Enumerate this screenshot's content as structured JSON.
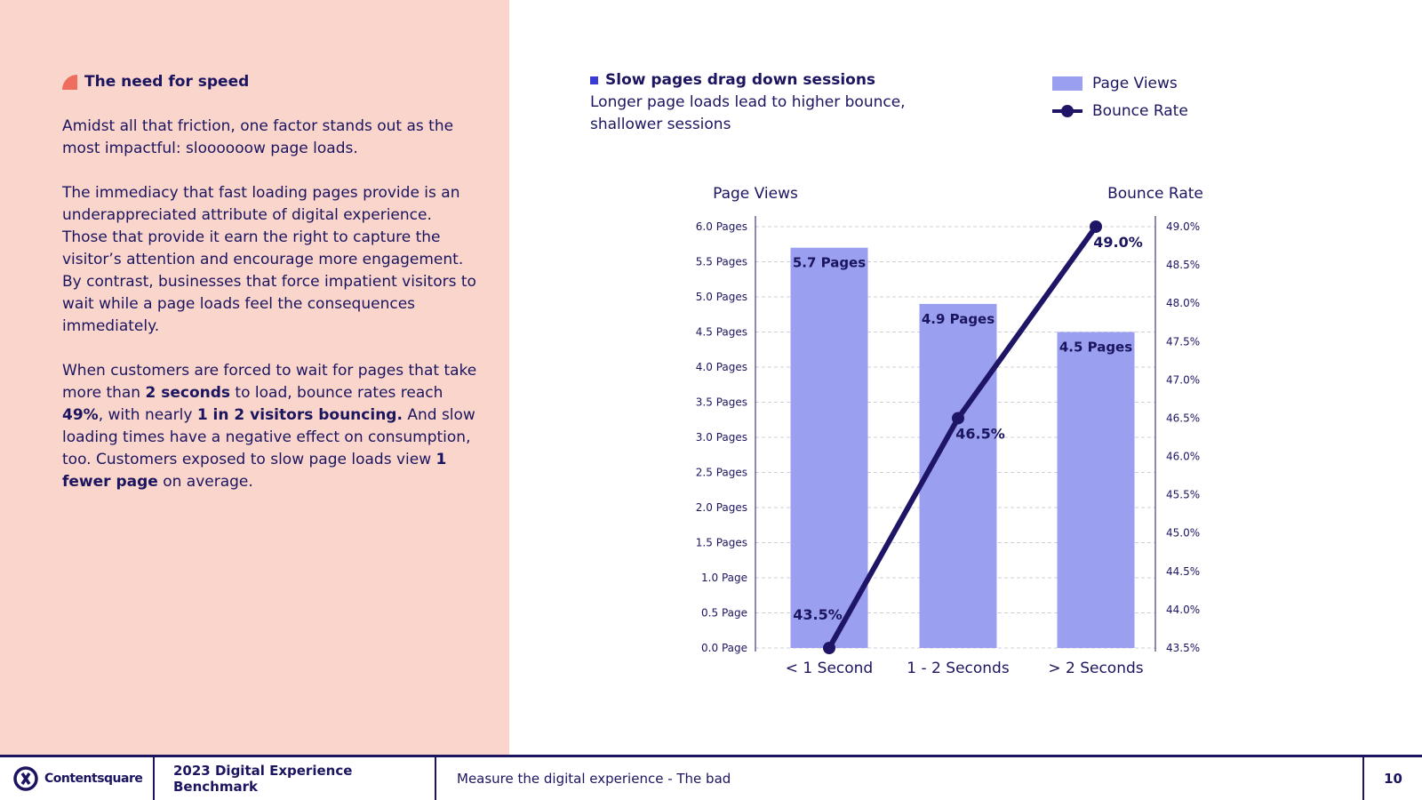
{
  "left": {
    "section_title": "The need for speed",
    "p1": "Amidst all that friction, one factor stands out as the most impactful: sloooooow page loads.",
    "p2": "The immediacy that fast loading pages provide is an underappreciated attribute of digital experience. Those that provide it earn the right to capture the visitor’s attention and encourage more engagement. By contrast, businesses that force impatient visitors to wait while a page loads feel the consequences immediately.",
    "p3": {
      "s1": "When customers are forced to wait for pages that take more than ",
      "b1": "2 seconds",
      "s2": " to load, bounce rates reach ",
      "b2": "49%",
      "s3": ", with nearly ",
      "b3": "1 in 2 visitors bouncing.",
      "s4": " And slow loading times have a negative effect on consumption, too. Customers exposed to slow page loads view ",
      "b4": "1 fewer page",
      "s5": " on average."
    }
  },
  "chart_header": {
    "title": "Slow pages drag down sessions",
    "subtitle": "Longer page loads lead to higher bounce, shallower sessions"
  },
  "legend": {
    "page_views": "Page Views",
    "bounce_rate": "Bounce Rate"
  },
  "colors": {
    "bar": "#9aa0ef",
    "line": "#1f1566",
    "text": "#1b1560",
    "grid": "#cfcfd8"
  },
  "chart_data": {
    "type": "bar",
    "title": "Slow pages drag down sessions",
    "categories": [
      "< 1 Second",
      "1 - 2 Seconds",
      "> 2 Seconds"
    ],
    "series": [
      {
        "name": "Page Views",
        "type": "bar",
        "axis": "left",
        "values": [
          5.7,
          4.9,
          4.5
        ],
        "labels": [
          "5.7 Pages",
          "4.9 Pages",
          "4.5 Pages"
        ]
      },
      {
        "name": "Bounce Rate",
        "type": "line",
        "axis": "right",
        "values": [
          43.5,
          46.5,
          49.0
        ],
        "labels": [
          "43.5%",
          "46.5%",
          "49.0%"
        ]
      }
    ],
    "left_axis": {
      "label": "Page Views",
      "range": [
        0,
        6
      ],
      "ticks": [
        0,
        0.5,
        1,
        1.5,
        2,
        2.5,
        3,
        3.5,
        4,
        4.5,
        5,
        5.5,
        6
      ],
      "tick_labels": [
        "0.0 Page",
        "0.5 Page",
        "1.0 Page",
        "1.5 Pages",
        "2.0 Pages",
        "2.5 Pages",
        "3.0 Pages",
        "3.5 Pages",
        "4.0 Pages",
        "4.5 Pages",
        "5.0 Pages",
        "5.5 Pages",
        "6.0 Pages"
      ]
    },
    "right_axis": {
      "label": "Bounce Rate",
      "range": [
        43.5,
        49.0
      ],
      "ticks": [
        43.5,
        44.0,
        44.5,
        45.0,
        45.5,
        46.0,
        46.5,
        47.0,
        47.5,
        48.0,
        48.5,
        49.0
      ],
      "tick_labels": [
        "43.5%",
        "44.0%",
        "44.5%",
        "45.0%",
        "45.5%",
        "46.0%",
        "46.5%",
        "47.0%",
        "47.5%",
        "48.0%",
        "48.5%",
        "49.0%"
      ]
    },
    "grid": true,
    "legend_position": "top-right"
  },
  "footer": {
    "brand": "Contentsquare",
    "report": "2023 Digital Experience Benchmark",
    "section": "Measure the digital experience - The bad",
    "page": "10"
  }
}
